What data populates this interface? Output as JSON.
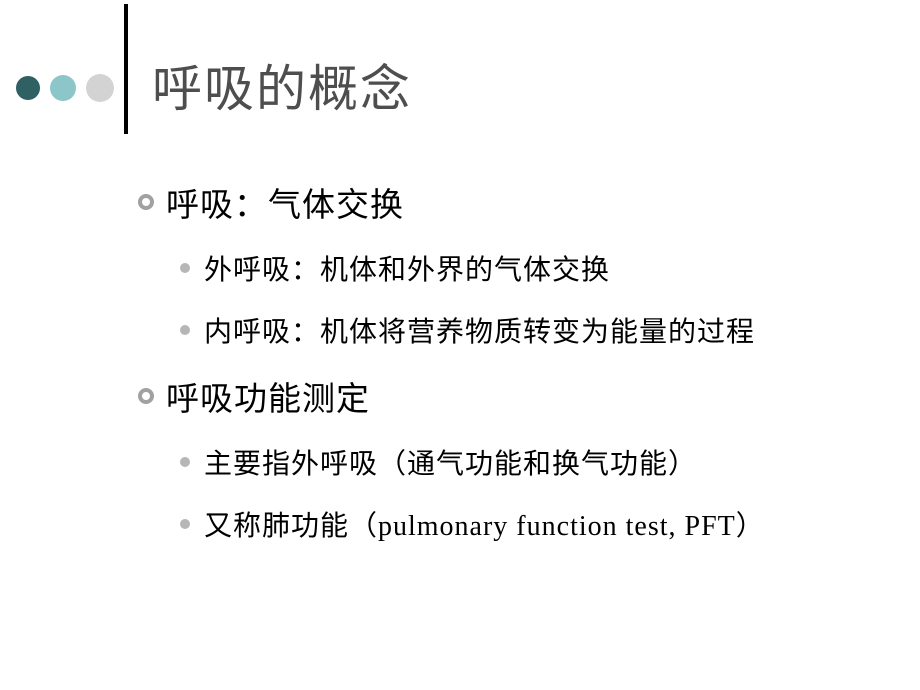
{
  "title": "呼吸的概念",
  "colors": {
    "dot1": "#2e6064",
    "dot2": "#8cc6c8",
    "dot3": "#d3d3d3",
    "titleText": "#4e4e4e",
    "divider": "#000000",
    "bulletRing": "#9fa29e",
    "bulletDot": "#b5b7b4",
    "bodyText": "#000000",
    "background": "#ffffff"
  },
  "items": [
    {
      "level": 1,
      "text": "呼吸：气体交换"
    },
    {
      "level": 2,
      "text": "外呼吸：机体和外界的气体交换"
    },
    {
      "level": 2,
      "text": "内呼吸：机体将营养物质转变为能量的过程"
    },
    {
      "level": 1,
      "text": "呼吸功能测定"
    },
    {
      "level": 2,
      "text": "主要指外呼吸（通气功能和换气功能）"
    },
    {
      "level": 2,
      "text": "又称肺功能（pulmonary function test, PFT）"
    }
  ],
  "typography": {
    "titleFontSize": 50,
    "level1FontSize": 33,
    "level2FontSize": 28,
    "fontFamily": "SimSun"
  }
}
